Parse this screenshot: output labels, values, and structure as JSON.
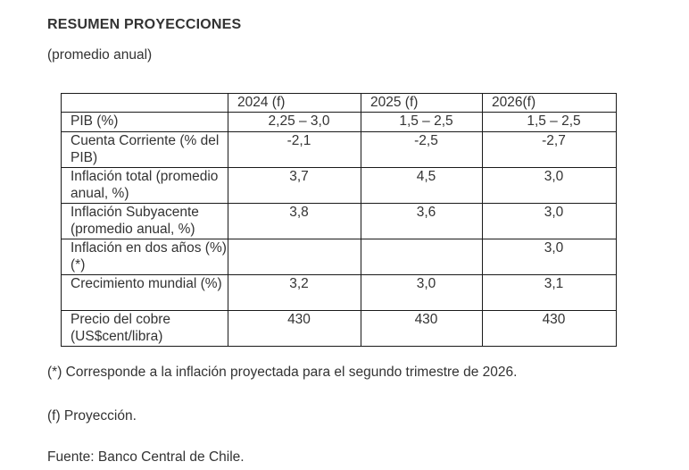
{
  "title": "RESUMEN PROYECCIONES",
  "subtitle": "(promedio anual)",
  "table": {
    "headers": [
      "",
      "2024 (f)",
      "2025 (f)",
      "2026(f)"
    ],
    "rows": [
      {
        "label": "PIB (%)",
        "values": [
          "2,25 – 3,0",
          "1,5 – 2,5",
          "1,5 – 2,5"
        ]
      },
      {
        "label": "Cuenta Corriente (% del PIB)",
        "values": [
          "-2,1",
          "-2,5",
          "-2,7"
        ]
      },
      {
        "label": "Inflación total (promedio anual, %)",
        "values": [
          "3,7",
          "4,5",
          "3,0"
        ]
      },
      {
        "label": "Inflación Subyacente (promedio anual, %)",
        "values": [
          "3,8",
          "3,6",
          "3,0"
        ]
      },
      {
        "label": "Inflación en dos años (%) (*)",
        "values": [
          "",
          "",
          "3,0"
        ]
      },
      {
        "label": "Crecimiento mundial (%)",
        "values": [
          "3,2",
          "3,0",
          "3,1"
        ]
      },
      {
        "label": "Precio del cobre (US$cent/libra)",
        "values": [
          "430",
          "430",
          "430"
        ]
      }
    ]
  },
  "notes": {
    "footnote": "(*) Corresponde a la inflación proyectada para el segundo trimestre de 2026.",
    "projection": "(f) Proyección.",
    "source": "Fuente: Banco Central de Chile."
  }
}
